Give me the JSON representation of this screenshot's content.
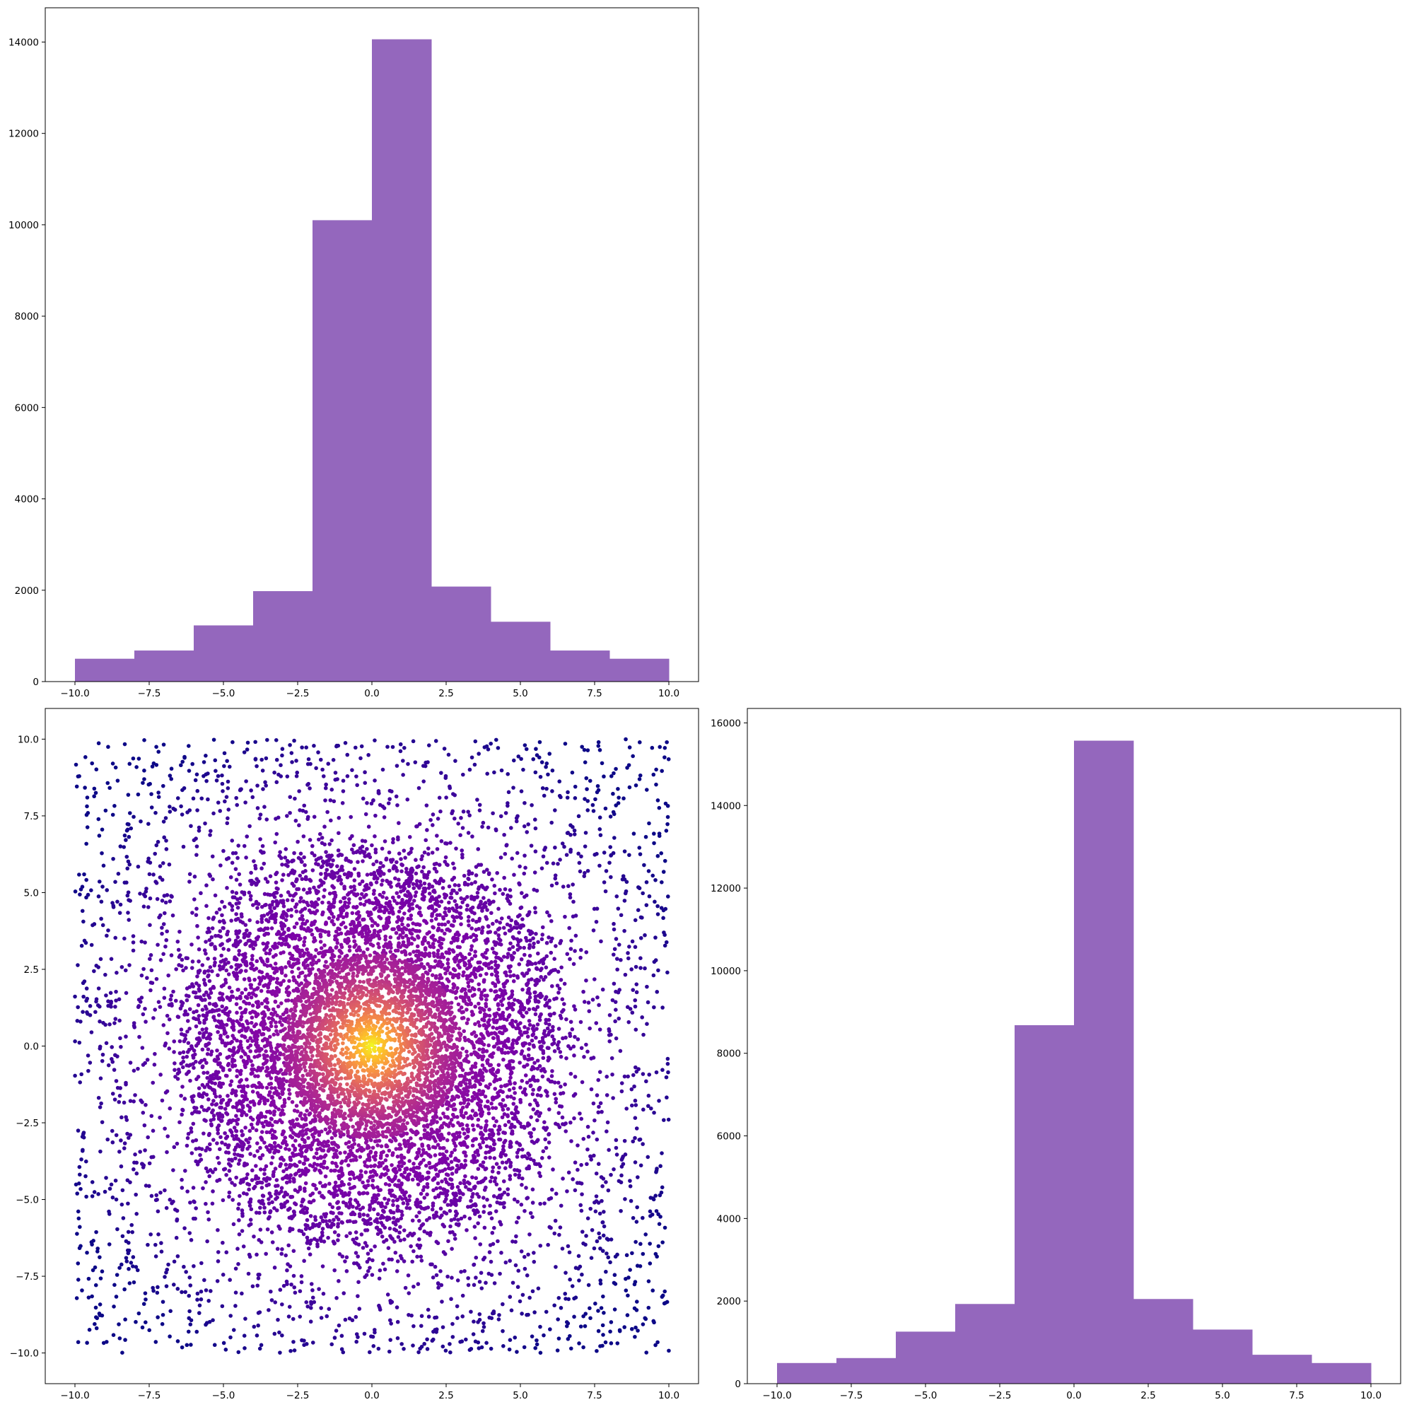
{
  "chart_data": [
    {
      "id": "x-histogram",
      "type": "bar",
      "title": "",
      "xlabel": "",
      "ylabel": "",
      "bin_edges": [
        -10,
        -8,
        -6,
        -4,
        -2,
        0,
        2,
        4,
        6,
        8,
        10
      ],
      "values": [
        500,
        680,
        1230,
        1980,
        10100,
        14060,
        2080,
        1310,
        680,
        500
      ],
      "xlim": [
        -11,
        11
      ],
      "ylim": [
        0,
        14750
      ],
      "xticks": [
        -10,
        -7.5,
        -5,
        -2.5,
        0,
        2.5,
        5,
        7.5,
        10
      ],
      "xtick_labels": [
        "−10.0",
        "−7.5",
        "−5.0",
        "−2.5",
        "0.0",
        "2.5",
        "5.0",
        "7.5",
        "10.0"
      ],
      "yticks": [
        0,
        2000,
        4000,
        6000,
        8000,
        10000,
        12000,
        14000
      ],
      "ytick_labels": [
        "0",
        "2000",
        "4000",
        "6000",
        "8000",
        "10000",
        "12000",
        "14000"
      ],
      "color": "#9467bd",
      "grid": false
    },
    {
      "id": "y-histogram",
      "type": "bar",
      "title": "",
      "xlabel": "",
      "ylabel": "",
      "bin_edges": [
        -10,
        -8,
        -6,
        -4,
        -2,
        0,
        2,
        4,
        6,
        8,
        10
      ],
      "values": [
        500,
        620,
        1260,
        1930,
        8680,
        15570,
        2050,
        1310,
        700,
        500
      ],
      "xlim": [
        -11,
        11
      ],
      "ylim": [
        0,
        16350
      ],
      "xticks": [
        -10,
        -7.5,
        -5,
        -2.5,
        0,
        2.5,
        5,
        7.5,
        10
      ],
      "xtick_labels": [
        "−10.0",
        "−7.5",
        "−5.0",
        "−2.5",
        "0.0",
        "2.5",
        "5.0",
        "7.5",
        "10.0"
      ],
      "yticks": [
        0,
        2000,
        4000,
        6000,
        8000,
        10000,
        12000,
        14000,
        16000
      ],
      "ytick_labels": [
        "0",
        "2000",
        "4000",
        "6000",
        "8000",
        "10000",
        "12000",
        "14000",
        "16000"
      ],
      "color": "#9467bd",
      "grid": false
    },
    {
      "id": "scatter",
      "type": "scatter",
      "title": "",
      "xlabel": "",
      "ylabel": "",
      "x_range": [
        -10,
        10
      ],
      "y_range": [
        -10,
        10
      ],
      "distribution": "uniform background on the square plus two concentric density rings (radius ~3 dense core, ~6.5 ring); colour by radial distance",
      "core_radius": 3,
      "ring_radius": 6.5,
      "colormap": "plasma",
      "xlim": [
        -11,
        11
      ],
      "ylim": [
        -11,
        11
      ],
      "xticks": [
        -10,
        -7.5,
        -5,
        -2.5,
        0,
        2.5,
        5,
        7.5,
        10
      ],
      "xtick_labels": [
        "−10.0",
        "−7.5",
        "−5.0",
        "−2.5",
        "0.0",
        "2.5",
        "5.0",
        "7.5",
        "10.0"
      ],
      "yticks": [
        -10,
        -7.5,
        -5,
        -2.5,
        0,
        2.5,
        5,
        7.5,
        10
      ],
      "ytick_labels": [
        "−10.0",
        "−7.5",
        "−5.0",
        "−2.5",
        "0.0",
        "2.5",
        "5.0",
        "7.5",
        "10.0"
      ],
      "grid": false
    }
  ]
}
